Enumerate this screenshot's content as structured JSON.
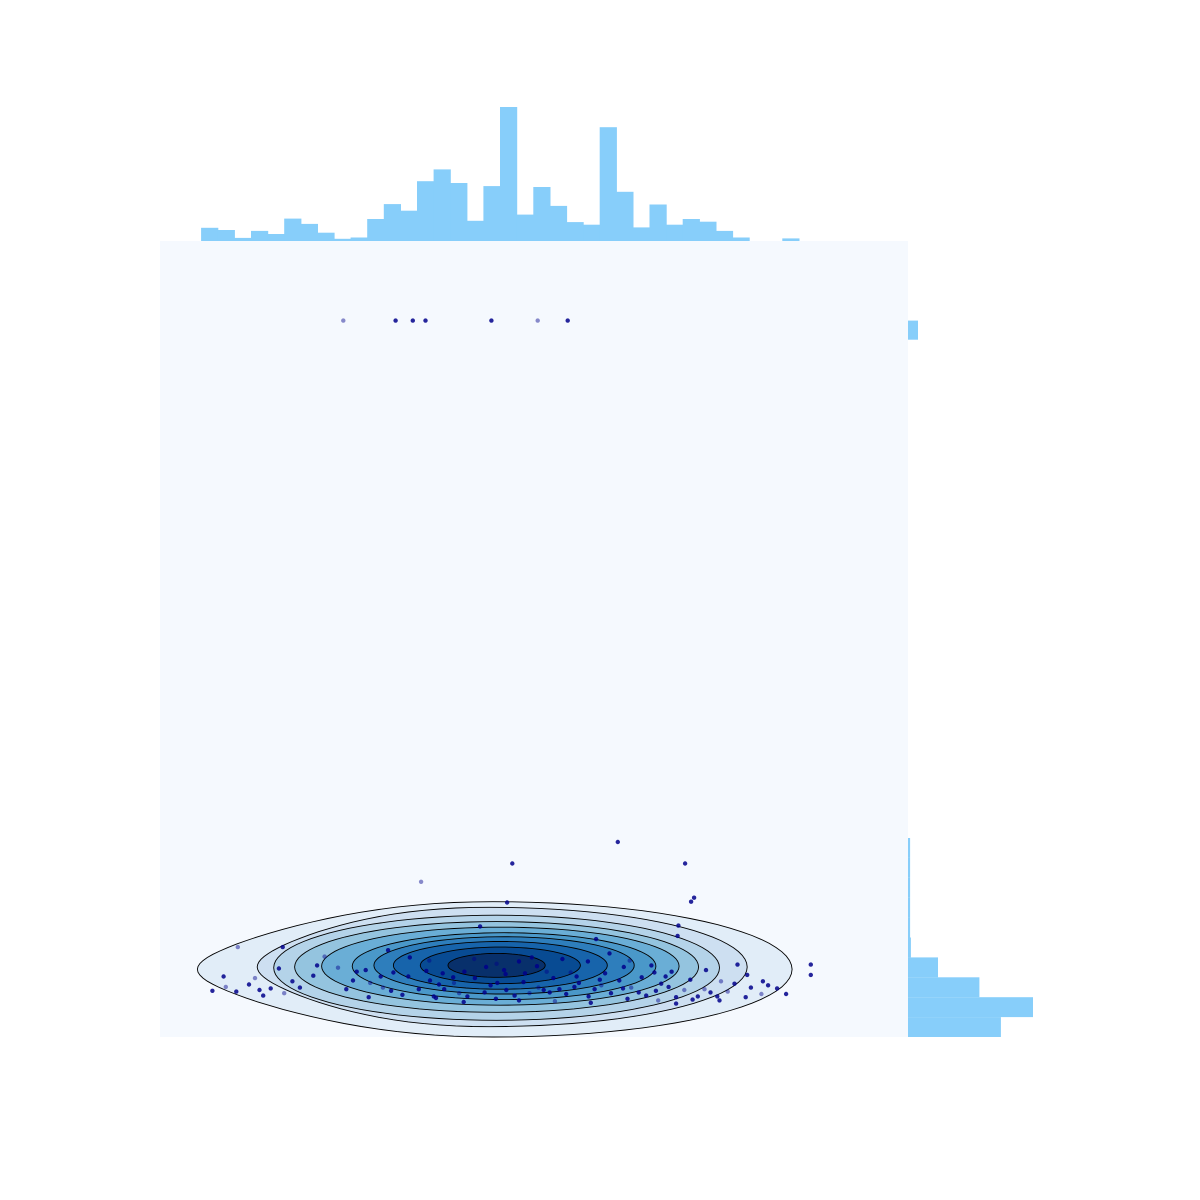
{
  "chart_data": {
    "type": "scatter",
    "title": "",
    "xlabel": "",
    "ylabel": "",
    "grid": false,
    "legend": "none",
    "axes_visible": false,
    "xlim": [
      0,
      100
    ],
    "ylim": [
      0,
      100
    ],
    "colors": {
      "background": "#f5f9fe",
      "hist": "#87cefa",
      "points": "#00008b",
      "contour_line": "#000000",
      "kde_levels": [
        "#e1edf8",
        "#cddff1",
        "#b4d3e9",
        "#94c4df",
        "#6aaed6",
        "#4a98c9",
        "#2e7ebc",
        "#1764ab",
        "#084b93",
        "#08306b"
      ]
    },
    "scatter_points": [
      [
        24.5,
        90
      ],
      [
        31.5,
        90
      ],
      [
        33.8,
        90
      ],
      [
        35.5,
        90
      ],
      [
        44.3,
        90
      ],
      [
        50.5,
        90
      ],
      [
        54.5,
        90
      ],
      [
        61.2,
        24.5
      ],
      [
        47.1,
        21.8
      ],
      [
        70.2,
        21.8
      ],
      [
        34.9,
        19.5
      ],
      [
        46.4,
        16.9
      ],
      [
        71.4,
        17.5
      ],
      [
        71.0,
        17.0
      ],
      [
        69.3,
        14.0
      ],
      [
        10.4,
        11.3
      ],
      [
        16.4,
        11.3
      ],
      [
        42.8,
        13.9
      ],
      [
        58.3,
        12.3
      ],
      [
        69.2,
        12.7
      ],
      [
        22.0,
        10.1
      ],
      [
        27.5,
        8.4
      ],
      [
        30.5,
        10.9
      ],
      [
        35.6,
        8.3
      ],
      [
        40.7,
        8.2
      ],
      [
        45.0,
        9.2
      ],
      [
        46.2,
        7.9
      ],
      [
        48.0,
        9.5
      ],
      [
        50.4,
        8.9
      ],
      [
        52.6,
        7.4
      ],
      [
        54.9,
        8.1
      ],
      [
        57.2,
        9.5
      ],
      [
        58.1,
        6.0
      ],
      [
        59.5,
        8.0
      ],
      [
        61.4,
        7.1
      ],
      [
        62.8,
        9.6
      ],
      [
        64.4,
        7.5
      ],
      [
        66.1,
        8.1
      ],
      [
        68.4,
        8.2
      ],
      [
        70.9,
        7.2
      ],
      [
        72.8,
        6.0
      ],
      [
        77.2,
        9.1
      ],
      [
        87.0,
        9.1
      ],
      [
        87.0,
        7.8
      ],
      [
        8.5,
        7.6
      ],
      [
        12.7,
        7.4
      ],
      [
        15.9,
        8.6
      ],
      [
        17.7,
        7.0
      ],
      [
        20.5,
        7.7
      ],
      [
        25.8,
        7.1
      ],
      [
        28.1,
        6.8
      ],
      [
        30.9,
        5.8
      ],
      [
        33.2,
        7.6
      ],
      [
        36.1,
        7.1
      ],
      [
        38.0,
        6.0
      ],
      [
        40.0,
        5.5
      ],
      [
        42.1,
        7.4
      ],
      [
        44.2,
        6.5
      ],
      [
        46.3,
        5.9
      ],
      [
        48.6,
        6.9
      ],
      [
        50.6,
        6.2
      ],
      [
        52.1,
        5.6
      ],
      [
        54.3,
        5.4
      ],
      [
        56.0,
        6.8
      ],
      [
        60.3,
        5.5
      ],
      [
        63.0,
        6.2
      ],
      [
        65.0,
        5.2
      ],
      [
        67.0,
        6.7
      ],
      [
        69.0,
        5.0
      ],
      [
        73.6,
        5.6
      ],
      [
        75.9,
        5.7
      ],
      [
        79.0,
        6.2
      ],
      [
        81.3,
        6.5
      ],
      [
        83.7,
        5.4
      ],
      [
        7.0,
        5.8
      ],
      [
        8.8,
        6.3
      ],
      [
        10.2,
        5.7
      ],
      [
        11.9,
        6.6
      ],
      [
        13.3,
        5.9
      ],
      [
        14.8,
        6.1
      ],
      [
        16.6,
        5.5
      ],
      [
        18.7,
        6.2
      ],
      [
        13.8,
        5.2
      ],
      [
        24.9,
        6.0
      ],
      [
        27.9,
        5.0
      ],
      [
        29.8,
        6.2
      ],
      [
        32.4,
        5.3
      ],
      [
        34.6,
        6.0
      ],
      [
        36.6,
        5.1
      ],
      [
        37.3,
        6.6
      ],
      [
        39.3,
        6.8
      ],
      [
        41.1,
        5.1
      ],
      [
        43.4,
        5.6
      ],
      [
        45.1,
        6.8
      ],
      [
        47.4,
        5.2
      ],
      [
        49.4,
        5.5
      ],
      [
        51.3,
        5.9
      ],
      [
        53.4,
        6.0
      ],
      [
        55.4,
        6.3
      ],
      [
        57.3,
        5.1
      ],
      [
        59.0,
        6.5
      ],
      [
        61.9,
        6.1
      ],
      [
        64.0,
        5.6
      ],
      [
        66.3,
        5.8
      ],
      [
        68.0,
        6.3
      ],
      [
        70.1,
        5.9
      ],
      [
        71.9,
        5.1
      ],
      [
        74.5,
        5.1
      ],
      [
        76.8,
        6.7
      ],
      [
        78.3,
        5.0
      ],
      [
        80.4,
        5.4
      ],
      [
        82.5,
        6.1
      ],
      [
        43.6,
        8.8
      ],
      [
        46.0,
        8.4
      ],
      [
        48.8,
        8.0
      ],
      [
        51.7,
        8.2
      ],
      [
        39.2,
        7.5
      ],
      [
        37.8,
        8.0
      ],
      [
        55.7,
        7.6
      ],
      [
        58.8,
        7.2
      ],
      [
        42.0,
        9.8
      ],
      [
        49.7,
        10.0
      ],
      [
        53.8,
        9.8
      ],
      [
        60.1,
        10.5
      ],
      [
        65.7,
        9.0
      ],
      [
        36.0,
        9.6
      ],
      [
        33.4,
        10.0
      ],
      [
        31.2,
        8.1
      ],
      [
        29.5,
        7.6
      ],
      [
        26.3,
        8.2
      ],
      [
        23.8,
        8.7
      ],
      [
        21.0,
        9.0
      ],
      [
        62.0,
        8.8
      ],
      [
        67.6,
        7.6
      ],
      [
        73.0,
        8.4
      ],
      [
        75.0,
        7.0
      ],
      [
        78.5,
        7.8
      ],
      [
        80.6,
        7.0
      ],
      [
        44.9,
        4.8
      ],
      [
        48.0,
        4.6
      ],
      [
        52.8,
        4.5
      ],
      [
        57.6,
        4.3
      ],
      [
        62.5,
        4.8
      ],
      [
        36.9,
        4.9
      ],
      [
        40.6,
        4.4
      ],
      [
        66.6,
        4.6
      ],
      [
        71.2,
        4.7
      ],
      [
        74.8,
        4.6
      ],
      [
        69.0,
        4.2
      ]
    ],
    "kde_contours": [
      {
        "center": [
          44.5,
          8.5
        ],
        "rx": 40.0,
        "ry": 8.5,
        "left_tail": 5.0
      },
      {
        "center": [
          44.0,
          8.8
        ],
        "rx": 34.5,
        "ry": 7.5,
        "left_tail": 13.0
      },
      {
        "center": [
          45.0,
          8.7
        ],
        "rx": 29.8,
        "ry": 6.6
      },
      {
        "center": [
          45.0,
          8.8
        ],
        "rx": 27.0,
        "ry": 5.7
      },
      {
        "center": [
          45.5,
          8.9
        ],
        "rx": 23.9,
        "ry": 4.9
      },
      {
        "center": [
          46.0,
          8.9
        ],
        "rx": 20.3,
        "ry": 4.2
      },
      {
        "center": [
          46.0,
          9.0
        ],
        "rx": 17.4,
        "ry": 3.6
      },
      {
        "center": [
          45.5,
          9.0
        ],
        "rx": 14.3,
        "ry": 3.0
      },
      {
        "center": [
          45.5,
          9.0
        ],
        "rx": 10.7,
        "ry": 2.3
      },
      {
        "center": [
          45.0,
          9.0
        ],
        "rx": 6.5,
        "ry": 1.5
      }
    ],
    "x_histogram": {
      "bin_start": 5.5,
      "bin_width": 2.22,
      "counts": [
        3,
        2.5,
        0.7,
        2.3,
        1.6,
        5.1,
        3.9,
        1.9,
        0.5,
        0.8,
        5.0,
        8.4,
        6.9,
        13.6,
        16.3,
        13.2,
        4.6,
        12.5,
        30.5,
        6.0,
        12.3,
        8.0,
        4.3,
        3.7,
        25.9,
        11.2,
        3.1,
        8.3,
        3.7,
        5.0,
        4.4,
        2.3,
        0.8,
        0,
        0,
        0.6
      ],
      "max_count": 30.5
    },
    "y_histogram": {
      "bins": [
        {
          "y0": 0,
          "y1": 2.5,
          "count": 13
        },
        {
          "y0": 2.5,
          "y1": 5.0,
          "count": 17.5
        },
        {
          "y0": 5.0,
          "y1": 7.5,
          "count": 10
        },
        {
          "y0": 7.5,
          "y1": 10.0,
          "count": 4.2
        },
        {
          "y0": 10.0,
          "y1": 12.5,
          "count": 0.4
        },
        {
          "y0": 12.5,
          "y1": 15.0,
          "count": 0.3
        },
        {
          "y0": 15.0,
          "y1": 17.5,
          "count": 0.3
        },
        {
          "y0": 17.5,
          "y1": 20.0,
          "count": 0.3
        },
        {
          "y0": 20.0,
          "y1": 22.5,
          "count": 0.3
        },
        {
          "y0": 22.5,
          "y1": 25.0,
          "count": 0.3
        },
        {
          "y0": 87.6,
          "y1": 90.0,
          "count": 1.4
        }
      ],
      "max_count": 17.5
    }
  }
}
